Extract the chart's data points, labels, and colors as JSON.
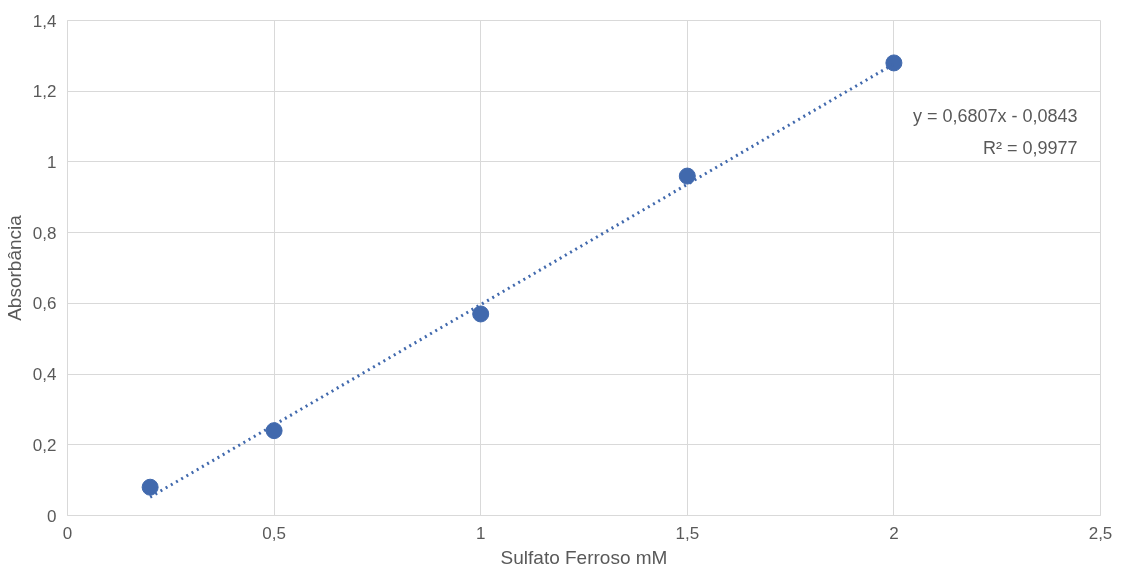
{
  "chart_data": {
    "type": "scatter",
    "xlabel": "Sulfato Ferroso mM",
    "ylabel": "Absorbância",
    "xlim": [
      0,
      2.5
    ],
    "ylim": [
      0,
      1.4
    ],
    "xticks": [
      0,
      {
        "value": 0.5,
        "label": "0,5"
      },
      1,
      {
        "value": 1.5,
        "label": "1,5"
      },
      2,
      {
        "value": 2.5,
        "label": "2,5"
      }
    ],
    "yticks": [
      0,
      {
        "value": 0.2,
        "label": "0,2"
      },
      {
        "value": 0.4,
        "label": "0,4"
      },
      {
        "value": 0.6,
        "label": "0,6"
      },
      {
        "value": 0.8,
        "label": "0,8"
      },
      1,
      {
        "value": 1.2,
        "label": "1,2"
      },
      {
        "value": 1.4,
        "label": "1,4"
      }
    ],
    "grid": true,
    "series": [
      {
        "marker": "circle",
        "color": "#4169ad",
        "x": [
          0.2,
          0.5,
          1,
          1.5,
          2
        ],
        "values": [
          0.08,
          0.24,
          0.57,
          0.96,
          1.28
        ]
      },
      {
        "type": "line",
        "color": "#4169ad",
        "line_style": "dotted",
        "x": [
          0.2,
          2
        ],
        "values": [
          0.052,
          1.277
        ]
      }
    ],
    "annotations": [
      "y = 0,6807x - 0,0843",
      "R² = 0,9977"
    ]
  }
}
